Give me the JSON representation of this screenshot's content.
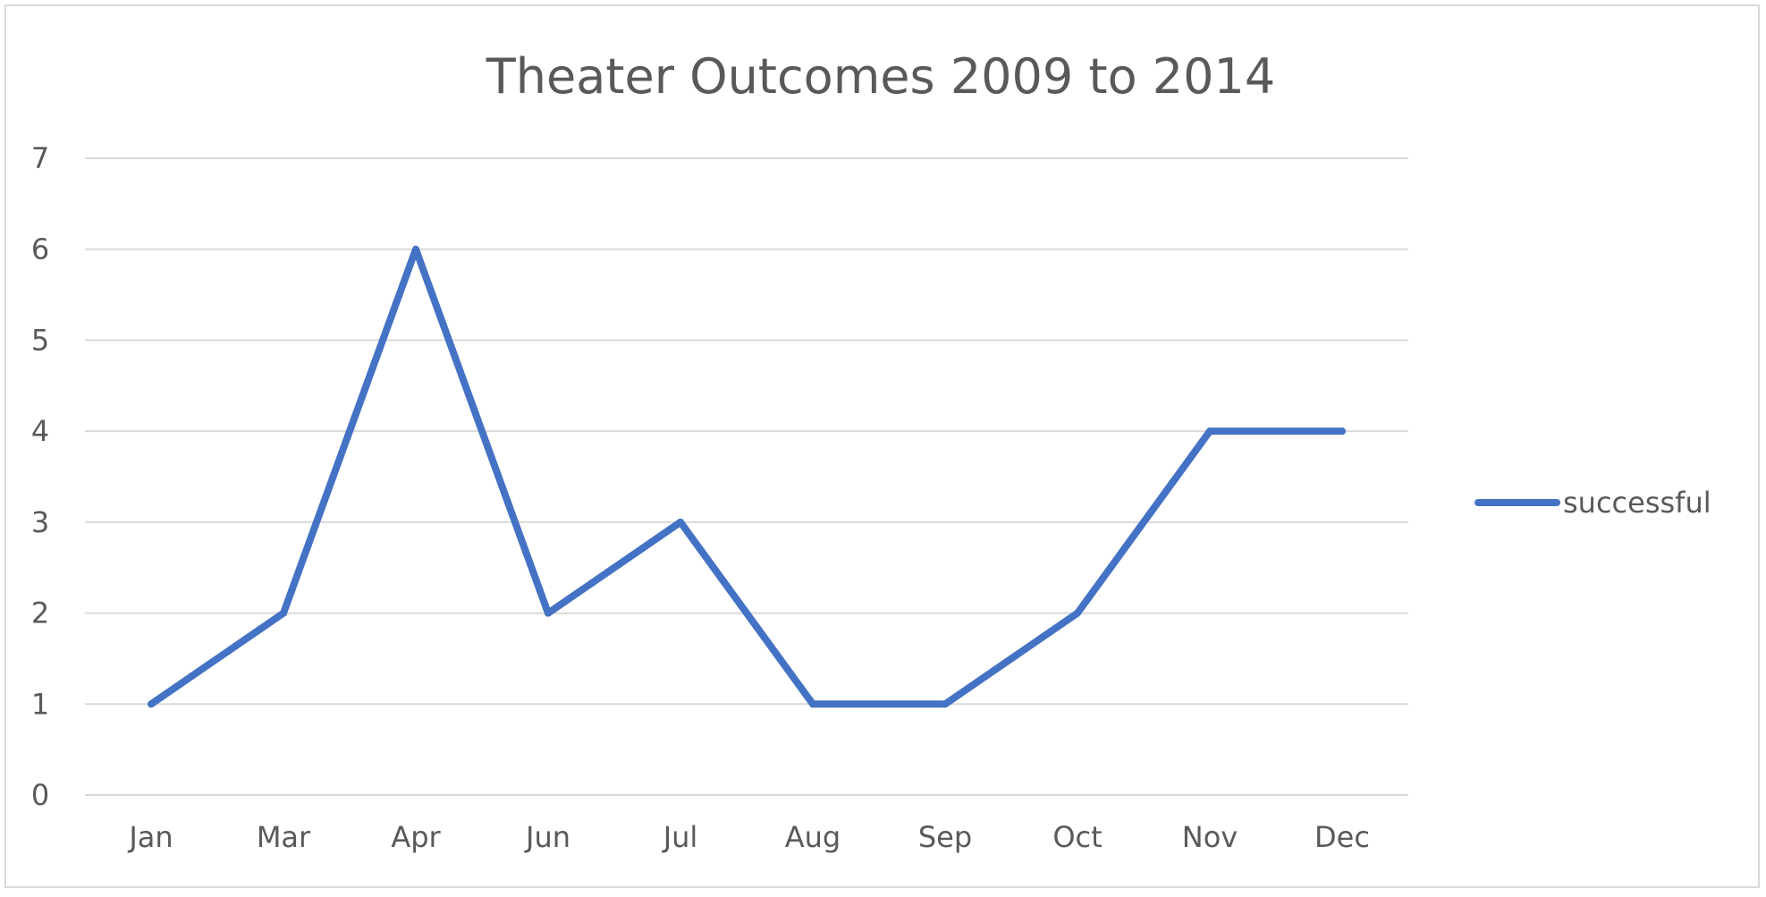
{
  "chart_data": {
    "type": "line",
    "title": "Theater Outcomes 2009 to 2014",
    "xlabel": "",
    "ylabel": "",
    "categories": [
      "Jan",
      "Mar",
      "Apr",
      "Jun",
      "Jul",
      "Aug",
      "Sep",
      "Oct",
      "Nov",
      "Dec"
    ],
    "series": [
      {
        "name": "successful",
        "values": [
          1,
          2,
          6,
          2,
          3,
          1,
          1,
          2,
          4,
          4
        ],
        "color": "#4472c4"
      }
    ],
    "ylim": [
      0,
      7
    ],
    "yticks": [
      "0",
      "1",
      "2",
      "3",
      "4",
      "5",
      "6",
      "7"
    ],
    "grid": true,
    "legend_position": "right"
  }
}
